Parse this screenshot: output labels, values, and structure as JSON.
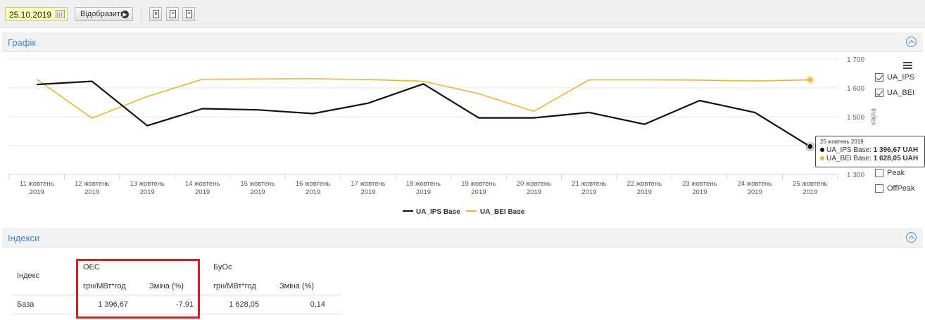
{
  "toolbar": {
    "date_value": "25.10.2019",
    "calendar_icon": "calendar-icon",
    "show_button_label": "Відобразити",
    "export_icons": [
      "excel-export-icon",
      "document-export-icon",
      "document-export-icon-2"
    ]
  },
  "chart_panel": {
    "title": "Графік"
  },
  "chart_data": {
    "type": "line",
    "categories": [
      [
        "11 жовтень",
        "2019"
      ],
      [
        "12 жовтень",
        "2019"
      ],
      [
        "13 жовтень",
        "2019"
      ],
      [
        "14 жовтень",
        "2019"
      ],
      [
        "15 жовтень",
        "2019"
      ],
      [
        "16 жовтень",
        "2019"
      ],
      [
        "17 жовтень",
        "2019"
      ],
      [
        "18 жовтень",
        "2019"
      ],
      [
        "19 жовтень",
        "2019"
      ],
      [
        "20 жовтень",
        "2019"
      ],
      [
        "21 жовтень",
        "2019"
      ],
      [
        "22 жовтень",
        "2019"
      ],
      [
        "23 жовтень",
        "2019"
      ],
      [
        "24 жовтень",
        "2019"
      ],
      [
        "25 жовтень",
        "2019"
      ]
    ],
    "series": [
      {
        "name": "UA_IPS Base",
        "color": "#111111",
        "values": [
          1612,
          1623,
          1469,
          1528,
          1524,
          1511,
          1547,
          1614,
          1496,
          1496,
          1515,
          1474,
          1556,
          1515,
          1396.67
        ]
      },
      {
        "name": "UA_BEI Base",
        "color": "#f2b233",
        "values": [
          1630,
          1495,
          1570,
          1630,
          1631,
          1632,
          1629,
          1623,
          1580,
          1519,
          1628,
          1628,
          1627,
          1624,
          1628.05
        ]
      }
    ],
    "ylabel": "Index",
    "ylim": [
      1300,
      1700
    ],
    "yticks": [
      "1 300",
      "1 400",
      "1 500",
      "1 600",
      "1 700"
    ],
    "grid": true,
    "legend": "bottom"
  },
  "chart_controls": {
    "menu_icon": "hamburger-menu-icon",
    "checkboxes": [
      {
        "label": "UA_IPS",
        "checked": true
      },
      {
        "label": "UA_BEI",
        "checked": true
      },
      {
        "label": "Peak",
        "checked": false
      },
      {
        "label": "OffPeak",
        "checked": false
      }
    ]
  },
  "tooltip": {
    "date": "25 жовтень 2019",
    "rows": [
      {
        "label": "UA_IPS Base:",
        "value": "1 396,67 UAH",
        "color": "#111111"
      },
      {
        "label": "UA_BEI Base:",
        "value": "1 628,05 UAH",
        "color": "#f2b233"
      }
    ]
  },
  "index_panel": {
    "title": "Індекси",
    "table": {
      "row_header": "Індекс",
      "group1": "ОЕС",
      "group2": "БуОс",
      "col_price": "грн/МВт*год",
      "col_change": "Зміна (%)",
      "rows": [
        {
          "name": "База",
          "g1_price": "1 396,67",
          "g1_change": "-7,91",
          "g2_price": "1 628,05",
          "g2_change": "0,14"
        }
      ]
    }
  }
}
